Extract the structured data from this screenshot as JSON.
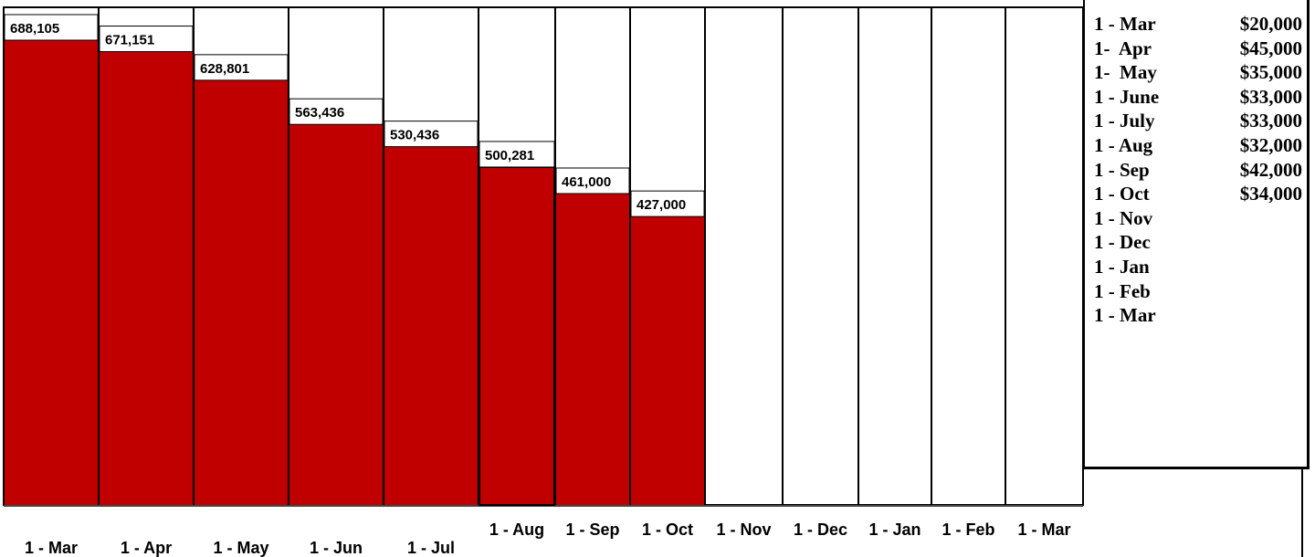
{
  "chart_data": {
    "type": "bar",
    "categories": [
      "1 - Mar",
      "1 - Apr",
      "1 - May",
      "1 - Jun",
      "1 - Jul",
      "1 - Aug",
      "1 - Sep",
      "1 - Oct",
      "1 - Nov",
      "1 - Dec",
      "1 - Jan",
      "1 - Feb",
      "1 - Mar"
    ],
    "values": [
      688105,
      671151,
      628801,
      563436,
      530436,
      500281,
      461000,
      427000,
      null,
      null,
      null,
      null,
      null
    ],
    "data_labels": [
      "688,105",
      "671,151",
      "628,801",
      "563,436",
      "530,436",
      "500,281",
      "461,000",
      "427,000",
      "",
      "",
      "",
      "",
      ""
    ],
    "ylim": [
      0,
      750000
    ],
    "title": "",
    "xlabel": "",
    "ylabel": "",
    "grid": true,
    "bar_color": "#c00000"
  },
  "legend": {
    "rows": [
      {
        "month": "1 - Mar",
        "amount": "$20,000"
      },
      {
        "month": "1-  Apr",
        "amount": "$45,000"
      },
      {
        "month": "1-  May",
        "amount": "$35,000"
      },
      {
        "month": "1 - June",
        "amount": "$33,000"
      },
      {
        "month": "1 - July",
        "amount": "$33,000"
      },
      {
        "month": "1 - Aug",
        "amount": "$32,000"
      },
      {
        "month": "1 - Sep",
        "amount": "$42,000"
      },
      {
        "month": "1 - Oct",
        "amount": "$34,000"
      },
      {
        "month": "1 - Nov",
        "amount": ""
      },
      {
        "month": "1 - Dec",
        "amount": ""
      },
      {
        "month": "1 - Jan",
        "amount": ""
      },
      {
        "month": "1 - Feb",
        "amount": ""
      },
      {
        "month": "1 - Mar",
        "amount": ""
      }
    ]
  }
}
